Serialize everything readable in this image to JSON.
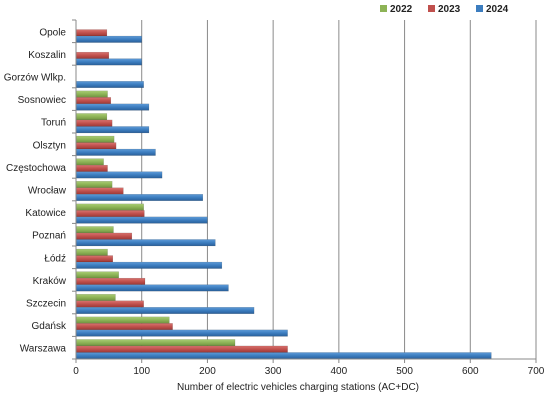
{
  "chart_data": {
    "type": "bar",
    "orientation": "horizontal",
    "xlabel": "Number of electric vehicles charging stations (AC+DC)",
    "ylabel": "",
    "title": "",
    "xlim": [
      0,
      700
    ],
    "xticks": [
      "0",
      "100",
      "200",
      "300",
      "400",
      "500",
      "600",
      "700"
    ],
    "grid": "vertical",
    "legend_position": "top-right",
    "categories": [
      "Opole",
      "Koszalin",
      "Gorzów Wlkp.",
      "Sosnowiec",
      "Toruń",
      "Olsztyn",
      "Częstochowa",
      "Wrocław",
      "Katowice",
      "Poznań",
      "Łódź",
      "Kraków",
      "Szczecin",
      "Gdańsk",
      "Warszawa"
    ],
    "series": [
      {
        "name": "2022",
        "color": "#8db356",
        "values": [
          0,
          0,
          0,
          48,
          47,
          58,
          42,
          55,
          103,
          57,
          48,
          65,
          60,
          142,
          242
        ]
      },
      {
        "name": "2023",
        "color": "#c0504d",
        "values": [
          47,
          50,
          0,
          53,
          55,
          61,
          48,
          72,
          104,
          85,
          56,
          105,
          103,
          147,
          322
        ]
      },
      {
        "name": "2024",
        "color": "#3c7dbf",
        "values": [
          100,
          100,
          103,
          111,
          111,
          121,
          131,
          193,
          200,
          212,
          222,
          232,
          271,
          322,
          632
        ]
      }
    ]
  }
}
